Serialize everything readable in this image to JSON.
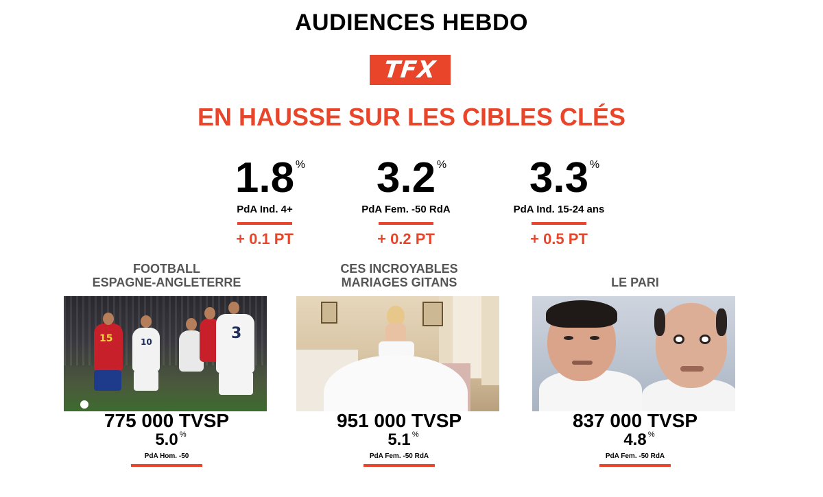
{
  "title": "AUDIENCES HEBDO",
  "logo_text": "TFX",
  "headline": "EN HAUSSE SUR LES CIBLES CLÉS",
  "accent_color": "#e8452a",
  "stats": [
    {
      "value": "1.8",
      "unit": "%",
      "label": "PdA Ind. 4+",
      "delta": "+ 0.1 PT"
    },
    {
      "value": "3.2",
      "unit": "%",
      "label": "PdA Fem. -50 RdA",
      "delta": "+ 0.2 PT"
    },
    {
      "value": "3.3",
      "unit": "%",
      "label": "PdA Ind. 15-24 ans",
      "delta": "+ 0.5 PT"
    }
  ],
  "programs": [
    {
      "title_line1": "FOOTBALL",
      "title_line2": "ESPAGNE-ANGLETERRE",
      "viewers": "775 000 TVSP",
      "share": "5.0",
      "share_unit": "%",
      "share_label": "PdA Hom. -50",
      "photo": "football-match-photo"
    },
    {
      "title_line1": "CES INCROYABLES",
      "title_line2": "MARIAGES GITANS",
      "viewers": "951 000 TVSP",
      "share": "5.1",
      "share_unit": "%",
      "share_label": "PdA Fem. -50 RdA",
      "photo": "wedding-dress-photo"
    },
    {
      "title_line1": "",
      "title_line2": "LE PARI",
      "viewers": "837 000 TVSP",
      "share": "4.8",
      "share_unit": "%",
      "share_label": "PdA Fem. -50 RdA",
      "photo": "two-men-portrait-photo"
    }
  ]
}
